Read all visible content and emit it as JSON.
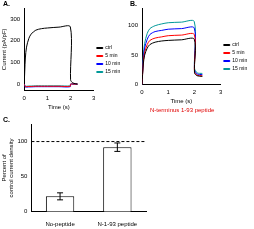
{
  "chart_data": [
    {
      "type": "line",
      "title": "A.",
      "x_label": "Time (s)",
      "y_label": "Current (pA/pF)",
      "x": [
        0,
        0.05,
        0.1,
        0.2,
        0.3,
        0.5,
        0.75,
        1,
        1.5,
        1.99,
        2,
        2.1,
        2.3
      ],
      "series": [
        {
          "name": "ctrl",
          "color": "#000000",
          "values": [
            0,
            120,
            170,
            210,
            230,
            248,
            255,
            258,
            262,
            263,
            20,
            5,
            0
          ]
        },
        {
          "name": "5 min",
          "color": "#ff0000",
          "values": [
            0,
            -12,
            -12,
            -11,
            -11,
            -10,
            -10,
            -10,
            -10,
            -10,
            0,
            0,
            0
          ]
        },
        {
          "name": "10 min",
          "color": "#0000ff",
          "values": [
            0,
            -14,
            -14,
            -13,
            -13,
            -12,
            -12,
            -12,
            -12,
            -12,
            0,
            0,
            0
          ]
        },
        {
          "name": "15 min",
          "color": "#009999",
          "values": [
            0,
            -10,
            -10,
            -9,
            -9,
            -8,
            -8,
            -8,
            -8,
            -8,
            0,
            0,
            0
          ]
        }
      ],
      "xlim": [
        0,
        3
      ],
      "xticks": [
        0,
        1,
        2,
        3
      ],
      "ylim": [
        -30,
        350
      ],
      "yticks": [
        0,
        100,
        200,
        300
      ],
      "grid": false,
      "legend": "right"
    },
    {
      "type": "line",
      "title": "B.",
      "x_label": "Time (s)",
      "annotation": "N-terminus 1-93 peptide",
      "x": [
        0,
        0.05,
        0.1,
        0.2,
        0.3,
        0.5,
        0.75,
        1,
        1.5,
        1.99,
        2,
        2.1,
        2.3
      ],
      "series": [
        {
          "name": "ctrl",
          "color": "#000000",
          "values": [
            0,
            35,
            50,
            62,
            68,
            72,
            74,
            75,
            76,
            77,
            20,
            15,
            14
          ]
        },
        {
          "name": "5 min",
          "color": "#ff0000",
          "values": [
            0,
            38,
            55,
            68,
            75,
            79,
            81,
            83,
            84,
            85,
            22,
            16,
            15
          ]
        },
        {
          "name": "10 min",
          "color": "#0000ff",
          "values": [
            0,
            43,
            62,
            77,
            85,
            90,
            92,
            94,
            95,
            96,
            25,
            18,
            17
          ]
        },
        {
          "name": "15 min",
          "color": "#009999",
          "values": [
            0,
            48,
            70,
            87,
            95,
            100,
            103,
            105,
            106,
            107,
            28,
            20,
            19
          ]
        }
      ],
      "xlim": [
        0,
        3
      ],
      "xticks": [
        0,
        1,
        2,
        3
      ],
      "ylim": [
        0,
        130
      ],
      "yticks": [
        0,
        50,
        100
      ],
      "grid": false,
      "legend": "right"
    },
    {
      "type": "bar",
      "title": "C.",
      "y_label": [
        "Percent of",
        "control current density"
      ],
      "categories": [
        "No-peptide",
        "N-1-93 peptide"
      ],
      "values": [
        22,
        92
      ],
      "errors": [
        5,
        6
      ],
      "reference_line": 100,
      "color": "#ffffff",
      "ylim": [
        0,
        125
      ],
      "yticks": [
        0,
        50,
        100
      ],
      "grid": false
    }
  ]
}
